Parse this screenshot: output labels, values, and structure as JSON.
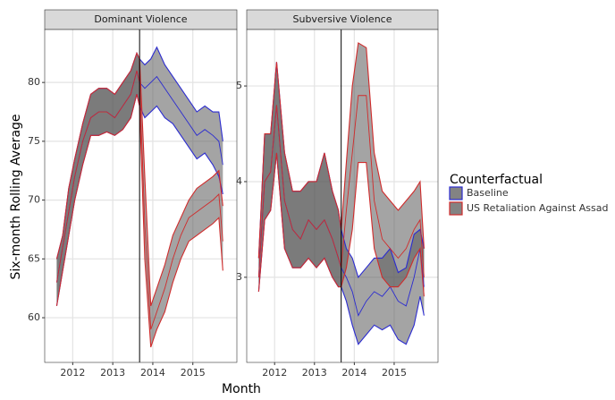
{
  "shared": {
    "x_label": "Month",
    "y_label": "Six-month Rolling Average",
    "legend_title": "Counterfactual",
    "ribbon_fill": "#5a5a5a"
  },
  "chart_data": [
    {
      "type": "ribbon",
      "title": "Dominant Violence",
      "x": [
        2011.6,
        2011.75,
        2011.9,
        2012.05,
        2012.25,
        2012.45,
        2012.65,
        2012.85,
        2013.05,
        2013.25,
        2013.45,
        2013.6,
        2013.67,
        2013.8,
        2013.95,
        2014.1,
        2014.3,
        2014.5,
        2014.7,
        2014.9,
        2015.1,
        2015.3,
        2015.5,
        2015.65,
        2015.75
      ],
      "xlim": [
        2011.3,
        2016.1
      ],
      "xticks": [
        2012,
        2013,
        2014,
        2015
      ],
      "ylim": [
        56.2,
        84.5
      ],
      "yticks": [
        60,
        65,
        70,
        75,
        80
      ],
      "grid": true,
      "vline": 2013.67,
      "series": [
        {
          "name": "Baseline",
          "color": "#2b2bd0",
          "values": [
            63,
            66,
            69,
            72,
            75,
            77,
            77.5,
            77.5,
            77,
            78,
            79,
            81,
            80,
            79.5,
            80,
            80.5,
            79.5,
            78.5,
            77.5,
            76.5,
            75.5,
            76,
            75.5,
            75,
            73
          ],
          "lower": [
            61,
            64,
            67,
            70,
            73,
            75.5,
            75.5,
            75.8,
            75.5,
            76,
            77,
            79,
            78,
            77,
            77.5,
            78,
            77,
            76.5,
            75.5,
            74.5,
            73.5,
            74,
            73,
            72,
            70.5
          ],
          "upper": [
            65,
            67,
            71,
            73.5,
            76.5,
            79,
            79.5,
            79.5,
            79,
            80,
            81,
            82.5,
            82,
            81.5,
            82,
            83,
            81.5,
            80.5,
            79.5,
            78.5,
            77.5,
            78,
            77.5,
            77.5,
            75
          ]
        },
        {
          "name": "US Retaliation Against Assad",
          "color": "#d02b2b",
          "values": [
            63,
            66,
            69,
            72,
            75,
            77,
            77.5,
            77.5,
            77,
            78,
            79,
            81,
            80,
            68,
            59,
            60.5,
            62.5,
            65,
            67,
            68.5,
            69,
            69.5,
            70,
            70.5,
            66.5
          ],
          "lower": [
            61,
            64,
            67,
            70,
            73,
            75.5,
            75.5,
            75.8,
            75.5,
            76,
            77,
            79,
            78,
            65,
            57.5,
            59,
            60.5,
            63,
            65,
            66.5,
            67,
            67.5,
            68,
            68.5,
            64
          ],
          "upper": [
            65,
            67,
            71,
            73.5,
            76.5,
            79,
            79.5,
            79.5,
            79,
            80,
            81,
            82.5,
            82,
            72,
            61,
            62.5,
            64.5,
            67,
            68.5,
            70,
            71,
            71.5,
            72,
            72.5,
            69.5
          ]
        }
      ]
    },
    {
      "type": "ribbon",
      "title": "Subversive Violence",
      "x": [
        2011.6,
        2011.75,
        2011.9,
        2012.05,
        2012.25,
        2012.45,
        2012.65,
        2012.85,
        2013.05,
        2013.25,
        2013.45,
        2013.6,
        2013.67,
        2013.8,
        2013.95,
        2014.1,
        2014.3,
        2014.5,
        2014.7,
        2014.9,
        2015.1,
        2015.3,
        2015.5,
        2015.65,
        2015.75
      ],
      "xlim": [
        2011.3,
        2016.1
      ],
      "xticks": [
        2012,
        2013,
        2014,
        2015
      ],
      "ylim": [
        2.11,
        5.59
      ],
      "yticks": [
        3,
        4,
        5
      ],
      "grid": true,
      "vline": 2013.67,
      "series": [
        {
          "color": "#2b2bd0",
          "values": [
            3.0,
            4.0,
            4.1,
            4.8,
            3.8,
            3.5,
            3.4,
            3.6,
            3.5,
            3.6,
            3.4,
            3.2,
            3.1,
            3.0,
            2.85,
            2.6,
            2.75,
            2.85,
            2.8,
            2.9,
            2.75,
            2.7,
            3.0,
            3.3,
            2.9
          ],
          "lower": [
            2.85,
            3.6,
            3.7,
            4.3,
            3.3,
            3.1,
            3.1,
            3.2,
            3.1,
            3.2,
            3.0,
            2.9,
            2.9,
            2.75,
            2.5,
            2.3,
            2.4,
            2.5,
            2.45,
            2.5,
            2.35,
            2.3,
            2.5,
            2.8,
            2.6
          ],
          "upper": [
            3.2,
            4.5,
            4.5,
            5.25,
            4.3,
            3.9,
            3.9,
            4.0,
            4.0,
            4.3,
            3.9,
            3.7,
            3.5,
            3.3,
            3.2,
            3.0,
            3.1,
            3.2,
            3.2,
            3.3,
            3.05,
            3.1,
            3.45,
            3.5,
            3.3
          ]
        },
        {
          "color": "#d02b2b",
          "values": [
            3.0,
            4.0,
            4.1,
            4.8,
            3.8,
            3.5,
            3.4,
            3.6,
            3.5,
            3.6,
            3.4,
            3.2,
            3.1,
            3.7,
            4.3,
            4.9,
            4.9,
            3.8,
            3.4,
            3.3,
            3.2,
            3.3,
            3.5,
            3.6,
            3.0
          ],
          "lower": [
            2.85,
            3.6,
            3.7,
            4.3,
            3.3,
            3.1,
            3.1,
            3.2,
            3.1,
            3.2,
            3.0,
            2.9,
            2.9,
            3.1,
            3.5,
            4.2,
            4.2,
            3.3,
            3.0,
            2.9,
            2.9,
            3.0,
            3.2,
            3.3,
            2.8
          ],
          "upper": [
            3.2,
            4.5,
            4.5,
            5.25,
            4.3,
            3.9,
            3.9,
            4.0,
            4.0,
            4.3,
            3.9,
            3.7,
            3.5,
            4.2,
            5.0,
            5.45,
            5.4,
            4.3,
            3.9,
            3.8,
            3.7,
            3.8,
            3.9,
            4.0,
            3.3
          ]
        }
      ]
    }
  ]
}
